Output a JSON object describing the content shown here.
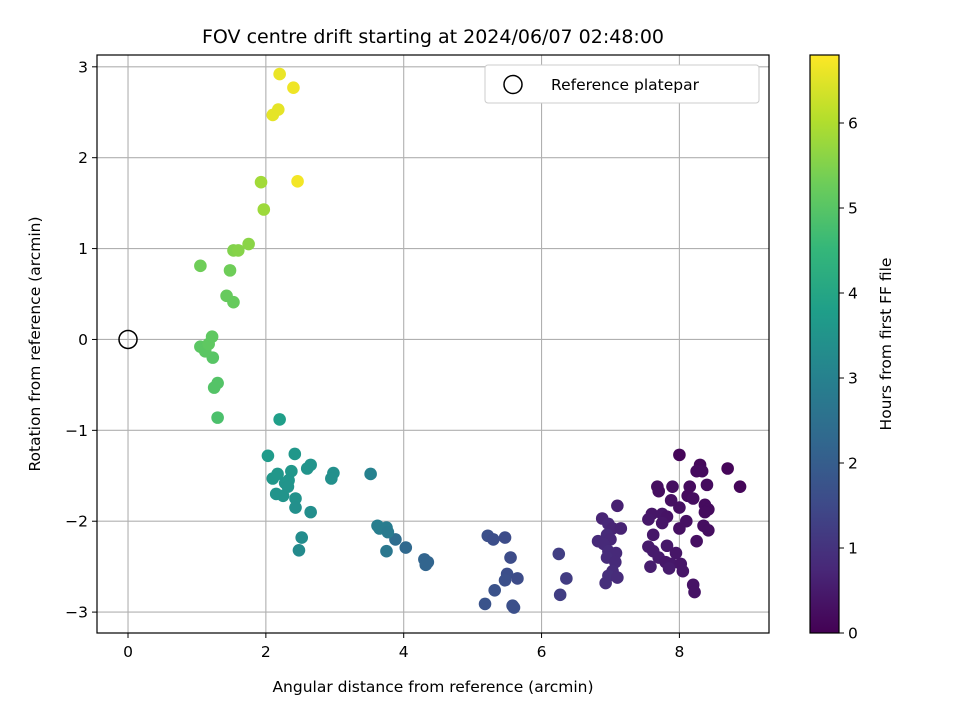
{
  "chart_data": {
    "type": "scatter",
    "title": "FOV centre drift starting at 2024/06/07 02:48:00",
    "xlabel": "Angular distance from reference (arcmin)",
    "ylabel": "Rotation from reference (arcmin)",
    "xlim": [
      -0.45,
      9.3
    ],
    "ylim": [
      -3.23,
      3.13
    ],
    "xticks": [
      0,
      2,
      4,
      6,
      8
    ],
    "yticks": [
      -3,
      -2,
      -1,
      0,
      1,
      2,
      3
    ],
    "grid": true,
    "legend": {
      "placement": "top-right",
      "entries": [
        "Reference platepar"
      ]
    },
    "reference_point": {
      "x": 0,
      "y": 0
    },
    "colorbar": {
      "label": "Hours from first FF file",
      "colormap": "viridis",
      "range": [
        0,
        6.8
      ],
      "ticks": [
        0,
        1,
        2,
        3,
        4,
        5,
        6
      ]
    },
    "points": [
      {
        "x": 8.7,
        "y": -1.42,
        "h": 0.1
      },
      {
        "x": 8.88,
        "y": -1.62,
        "h": 0.1
      },
      {
        "x": 8.0,
        "y": -1.27,
        "h": 0.1
      },
      {
        "x": 8.3,
        "y": -1.38,
        "h": 0.15
      },
      {
        "x": 8.25,
        "y": -1.45,
        "h": 0.2
      },
      {
        "x": 8.33,
        "y": -1.45,
        "h": 0.2
      },
      {
        "x": 8.4,
        "y": -1.6,
        "h": 0.2
      },
      {
        "x": 8.15,
        "y": -1.62,
        "h": 0.2
      },
      {
        "x": 7.9,
        "y": -1.62,
        "h": 0.25
      },
      {
        "x": 7.68,
        "y": -1.62,
        "h": 0.25
      },
      {
        "x": 7.7,
        "y": -1.67,
        "h": 0.25
      },
      {
        "x": 8.12,
        "y": -1.72,
        "h": 0.2
      },
      {
        "x": 8.2,
        "y": -1.75,
        "h": 0.25
      },
      {
        "x": 7.88,
        "y": -1.77,
        "h": 0.3
      },
      {
        "x": 8.37,
        "y": -1.82,
        "h": 0.2
      },
      {
        "x": 8.42,
        "y": -1.87,
        "h": 0.2
      },
      {
        "x": 8.37,
        "y": -1.9,
        "h": 0.2
      },
      {
        "x": 8.0,
        "y": -1.85,
        "h": 0.3
      },
      {
        "x": 7.6,
        "y": -1.92,
        "h": 0.4
      },
      {
        "x": 7.75,
        "y": -1.92,
        "h": 0.4
      },
      {
        "x": 7.82,
        "y": -1.95,
        "h": 0.35
      },
      {
        "x": 7.55,
        "y": -1.98,
        "h": 0.45
      },
      {
        "x": 7.75,
        "y": -2.02,
        "h": 0.4
      },
      {
        "x": 8.1,
        "y": -2.0,
        "h": 0.3
      },
      {
        "x": 8.35,
        "y": -2.05,
        "h": 0.25
      },
      {
        "x": 8.42,
        "y": -2.1,
        "h": 0.25
      },
      {
        "x": 8.0,
        "y": -2.08,
        "h": 0.3
      },
      {
        "x": 7.62,
        "y": -2.15,
        "h": 0.45
      },
      {
        "x": 8.25,
        "y": -2.22,
        "h": 0.3
      },
      {
        "x": 7.55,
        "y": -2.28,
        "h": 0.5
      },
      {
        "x": 7.82,
        "y": -2.27,
        "h": 0.45
      },
      {
        "x": 7.62,
        "y": -2.33,
        "h": 0.5
      },
      {
        "x": 7.95,
        "y": -2.35,
        "h": 0.4
      },
      {
        "x": 7.7,
        "y": -2.4,
        "h": 0.5
      },
      {
        "x": 7.8,
        "y": -2.45,
        "h": 0.45
      },
      {
        "x": 7.88,
        "y": -2.47,
        "h": 0.45
      },
      {
        "x": 8.02,
        "y": -2.47,
        "h": 0.4
      },
      {
        "x": 7.85,
        "y": -2.52,
        "h": 0.5
      },
      {
        "x": 7.58,
        "y": -2.5,
        "h": 0.55
      },
      {
        "x": 8.05,
        "y": -2.55,
        "h": 0.4
      },
      {
        "x": 8.2,
        "y": -2.7,
        "h": 0.35
      },
      {
        "x": 8.22,
        "y": -2.78,
        "h": 0.35
      },
      {
        "x": 7.1,
        "y": -1.83,
        "h": 0.6
      },
      {
        "x": 6.88,
        "y": -1.97,
        "h": 0.7
      },
      {
        "x": 6.97,
        "y": -2.03,
        "h": 0.75
      },
      {
        "x": 7.03,
        "y": -2.08,
        "h": 0.7
      },
      {
        "x": 7.15,
        "y": -2.08,
        "h": 0.65
      },
      {
        "x": 6.95,
        "y": -2.15,
        "h": 0.8
      },
      {
        "x": 6.82,
        "y": -2.22,
        "h": 0.8
      },
      {
        "x": 7.0,
        "y": -2.2,
        "h": 0.75
      },
      {
        "x": 6.9,
        "y": -2.25,
        "h": 0.8
      },
      {
        "x": 6.97,
        "y": -2.33,
        "h": 0.85
      },
      {
        "x": 7.08,
        "y": -2.35,
        "h": 0.8
      },
      {
        "x": 6.95,
        "y": -2.4,
        "h": 0.85
      },
      {
        "x": 7.07,
        "y": -2.45,
        "h": 0.8
      },
      {
        "x": 7.03,
        "y": -2.55,
        "h": 0.85
      },
      {
        "x": 6.97,
        "y": -2.6,
        "h": 0.9
      },
      {
        "x": 7.1,
        "y": -2.62,
        "h": 0.85
      },
      {
        "x": 6.93,
        "y": -2.68,
        "h": 0.9
      },
      {
        "x": 6.25,
        "y": -2.36,
        "h": 1.25
      },
      {
        "x": 6.36,
        "y": -2.63,
        "h": 1.2
      },
      {
        "x": 6.27,
        "y": -2.81,
        "h": 1.25
      },
      {
        "x": 5.22,
        "y": -2.16,
        "h": 1.65
      },
      {
        "x": 5.3,
        "y": -2.2,
        "h": 1.6
      },
      {
        "x": 5.47,
        "y": -2.18,
        "h": 1.55
      },
      {
        "x": 5.55,
        "y": -2.4,
        "h": 1.55
      },
      {
        "x": 5.5,
        "y": -2.58,
        "h": 1.6
      },
      {
        "x": 5.47,
        "y": -2.65,
        "h": 1.65
      },
      {
        "x": 5.65,
        "y": -2.63,
        "h": 1.55
      },
      {
        "x": 5.32,
        "y": -2.76,
        "h": 1.7
      },
      {
        "x": 5.18,
        "y": -2.91,
        "h": 1.75
      },
      {
        "x": 5.58,
        "y": -2.93,
        "h": 1.65
      },
      {
        "x": 5.6,
        "y": -2.95,
        "h": 1.65
      },
      {
        "x": 4.03,
        "y": -2.29,
        "h": 2.3
      },
      {
        "x": 3.88,
        "y": -2.2,
        "h": 2.4
      },
      {
        "x": 4.3,
        "y": -2.42,
        "h": 2.2
      },
      {
        "x": 4.35,
        "y": -2.45,
        "h": 2.2
      },
      {
        "x": 4.32,
        "y": -2.48,
        "h": 2.2
      },
      {
        "x": 3.52,
        "y": -1.48,
        "h": 3.0
      },
      {
        "x": 3.62,
        "y": -2.05,
        "h": 2.9
      },
      {
        "x": 3.65,
        "y": -2.08,
        "h": 2.9
      },
      {
        "x": 3.75,
        "y": -2.07,
        "h": 2.85
      },
      {
        "x": 3.77,
        "y": -2.12,
        "h": 2.8
      },
      {
        "x": 3.75,
        "y": -2.33,
        "h": 2.7
      },
      {
        "x": 2.98,
        "y": -1.47,
        "h": 3.4
      },
      {
        "x": 2.95,
        "y": -1.53,
        "h": 3.4
      },
      {
        "x": 2.65,
        "y": -1.38,
        "h": 3.5
      },
      {
        "x": 2.6,
        "y": -1.42,
        "h": 3.5
      },
      {
        "x": 2.42,
        "y": -1.26,
        "h": 3.6
      },
      {
        "x": 2.37,
        "y": -1.45,
        "h": 3.6
      },
      {
        "x": 2.2,
        "y": -0.88,
        "h": 3.8
      },
      {
        "x": 2.03,
        "y": -1.28,
        "h": 3.7
      },
      {
        "x": 2.1,
        "y": -1.53,
        "h": 3.6
      },
      {
        "x": 2.17,
        "y": -1.48,
        "h": 3.6
      },
      {
        "x": 2.28,
        "y": -1.58,
        "h": 3.5
      },
      {
        "x": 2.33,
        "y": -1.55,
        "h": 3.55
      },
      {
        "x": 2.32,
        "y": -1.62,
        "h": 3.5
      },
      {
        "x": 2.15,
        "y": -1.7,
        "h": 3.5
      },
      {
        "x": 2.25,
        "y": -1.72,
        "h": 3.5
      },
      {
        "x": 2.43,
        "y": -1.75,
        "h": 3.45
      },
      {
        "x": 2.43,
        "y": -1.85,
        "h": 3.4
      },
      {
        "x": 2.65,
        "y": -1.9,
        "h": 3.35
      },
      {
        "x": 2.52,
        "y": -2.18,
        "h": 3.3
      },
      {
        "x": 2.48,
        "y": -2.32,
        "h": 3.25
      },
      {
        "x": 1.3,
        "y": -0.86,
        "h": 4.85
      },
      {
        "x": 1.25,
        "y": -0.53,
        "h": 4.95
      },
      {
        "x": 1.3,
        "y": -0.48,
        "h": 4.95
      },
      {
        "x": 1.23,
        "y": -0.2,
        "h": 5.0
      },
      {
        "x": 1.05,
        "y": -0.08,
        "h": 5.05
      },
      {
        "x": 1.12,
        "y": -0.13,
        "h": 5.05
      },
      {
        "x": 1.17,
        "y": -0.05,
        "h": 5.1
      },
      {
        "x": 1.22,
        "y": 0.03,
        "h": 5.1
      },
      {
        "x": 1.43,
        "y": 0.48,
        "h": 5.2
      },
      {
        "x": 1.53,
        "y": 0.41,
        "h": 5.2
      },
      {
        "x": 1.05,
        "y": 0.81,
        "h": 5.3
      },
      {
        "x": 1.48,
        "y": 0.76,
        "h": 5.3
      },
      {
        "x": 1.53,
        "y": 0.98,
        "h": 5.5
      },
      {
        "x": 1.6,
        "y": 0.98,
        "h": 5.55
      },
      {
        "x": 1.75,
        "y": 1.05,
        "h": 5.6
      },
      {
        "x": 1.97,
        "y": 1.43,
        "h": 5.8
      },
      {
        "x": 1.93,
        "y": 1.73,
        "h": 5.85
      },
      {
        "x": 2.46,
        "y": 1.74,
        "h": 6.7
      },
      {
        "x": 2.1,
        "y": 2.47,
        "h": 6.55
      },
      {
        "x": 2.18,
        "y": 2.53,
        "h": 6.55
      },
      {
        "x": 2.4,
        "y": 2.77,
        "h": 6.65
      },
      {
        "x": 2.2,
        "y": 2.92,
        "h": 6.6
      }
    ]
  }
}
